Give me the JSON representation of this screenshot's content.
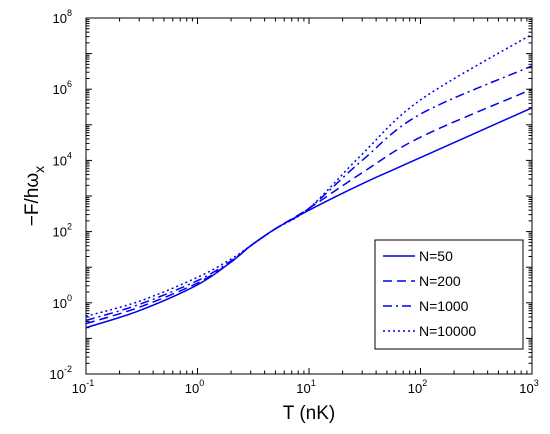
{
  "chart_data": {
    "type": "line",
    "title": "",
    "xlabel": "T (nK)",
    "ylabel_main": "−F/hω",
    "ylabel_sub": "x",
    "xscale": "log",
    "yscale": "log",
    "xlim": [
      0.1,
      1000
    ],
    "ylim": [
      0.01,
      100000000
    ],
    "x_ticks": [
      {
        "base": "10",
        "exp": "-1",
        "value": 0.1
      },
      {
        "base": "10",
        "exp": "0",
        "value": 1
      },
      {
        "base": "10",
        "exp": "1",
        "value": 10
      },
      {
        "base": "10",
        "exp": "2",
        "value": 100
      },
      {
        "base": "10",
        "exp": "3",
        "value": 1000
      }
    ],
    "y_ticks": [
      {
        "base": "10",
        "exp": "-2",
        "value": 0.01
      },
      {
        "base": "10",
        "exp": "0",
        "value": 1
      },
      {
        "base": "10",
        "exp": "2",
        "value": 100
      },
      {
        "base": "10",
        "exp": "4",
        "value": 10000
      },
      {
        "base": "10",
        "exp": "6",
        "value": 1000000
      },
      {
        "base": "10",
        "exp": "8",
        "value": 100000000
      }
    ],
    "grid": false,
    "legend_position": "lower-right",
    "color": "#0000ee",
    "x": [
      0.1,
      0.3,
      1,
      2,
      3,
      5,
      10,
      30,
      100,
      1000
    ],
    "series": [
      {
        "name": "N=50",
        "dash": "solid",
        "values": [
          0.2,
          0.6,
          3.2,
          14,
          40,
          120,
          400,
          2200,
          12000,
          300000
        ]
      },
      {
        "name": "N=200",
        "dash": "dashed",
        "values": [
          0.26,
          0.75,
          3.6,
          14,
          40,
          120,
          450,
          4500,
          45000,
          1000000
        ]
      },
      {
        "name": "N=1000",
        "dash": "dashdot",
        "values": [
          0.32,
          0.9,
          4.2,
          15,
          40,
          120,
          450,
          10000,
          200000,
          4500000
        ]
      },
      {
        "name": "N=10000",
        "dash": "dotted",
        "values": [
          0.42,
          1.1,
          5.2,
          17,
          40,
          120,
          450,
          15000,
          500000,
          35000000
        ]
      }
    ]
  }
}
